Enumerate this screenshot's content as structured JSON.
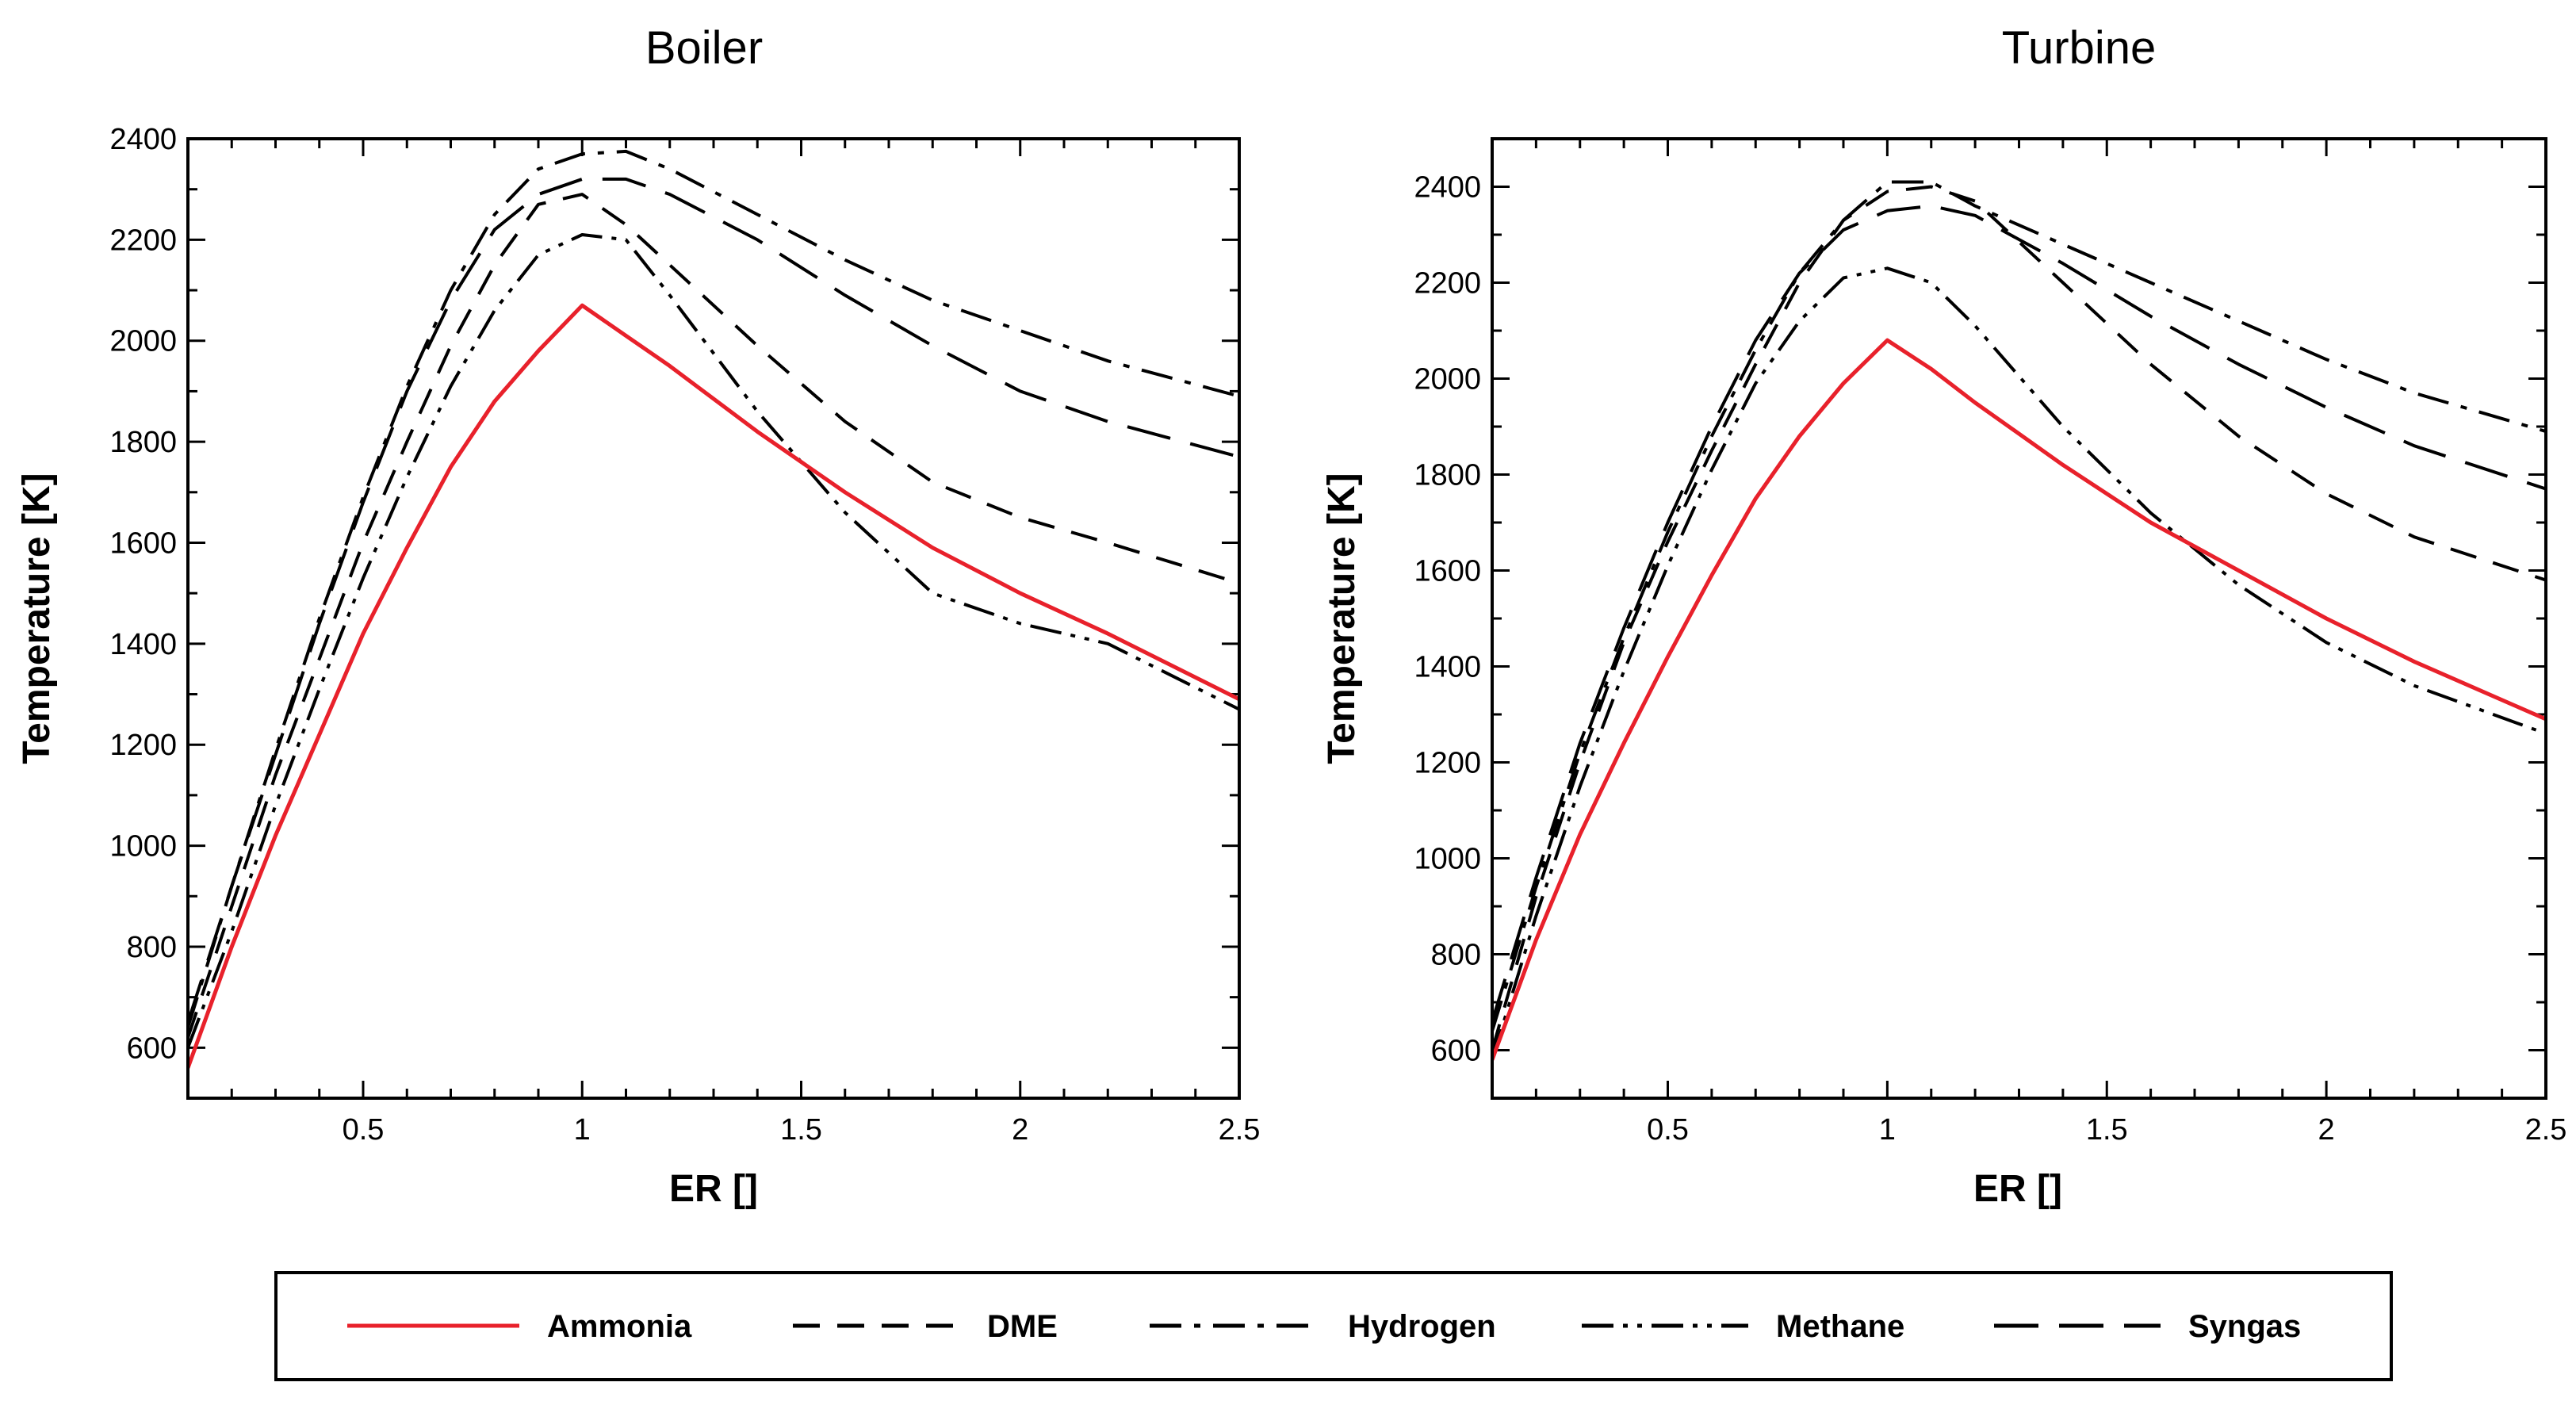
{
  "chart_data": [
    {
      "type": "line",
      "title": "Boiler",
      "xlabel": "ER []",
      "ylabel": "Temperature [K]",
      "xlim": [
        0.1,
        2.5
      ],
      "ylim": [
        500,
        2400
      ],
      "xticks": [
        0.5,
        1,
        1.5,
        2,
        2.5
      ],
      "xtick_labels": [
        "0.5",
        "1",
        "1.5",
        "2",
        "2.5"
      ],
      "yticks": [
        600,
        800,
        1000,
        1200,
        1400,
        1600,
        1800,
        2000,
        2200,
        2400
      ],
      "ytick_labels": [
        "600",
        "800",
        "1000",
        "1200",
        "1400",
        "1600",
        "1800",
        "2000",
        "2200",
        "2400"
      ],
      "grid": false,
      "series": [
        {
          "name": "Ammonia",
          "x": [
            0.1,
            0.2,
            0.3,
            0.4,
            0.5,
            0.6,
            0.7,
            0.8,
            0.9,
            1.0,
            1.1,
            1.2,
            1.4,
            1.6,
            1.8,
            2.0,
            2.2,
            2.5
          ],
          "values": [
            560,
            800,
            1020,
            1220,
            1420,
            1590,
            1750,
            1880,
            1980,
            2070,
            2010,
            1950,
            1820,
            1700,
            1590,
            1500,
            1420,
            1290
          ]
        },
        {
          "name": "DME",
          "x": [
            0.1,
            0.2,
            0.3,
            0.4,
            0.5,
            0.6,
            0.7,
            0.8,
            0.9,
            1.0,
            1.1,
            1.2,
            1.4,
            1.6,
            1.8,
            2.0,
            2.2,
            2.5
          ],
          "values": [
            620,
            880,
            1140,
            1370,
            1600,
            1800,
            1990,
            2150,
            2270,
            2290,
            2230,
            2150,
            1990,
            1840,
            1720,
            1650,
            1600,
            1520
          ]
        },
        {
          "name": "Hydrogen",
          "x": [
            0.1,
            0.2,
            0.3,
            0.4,
            0.5,
            0.6,
            0.7,
            0.8,
            0.9,
            1.0,
            1.1,
            1.2,
            1.4,
            1.6,
            1.8,
            2.0,
            2.2,
            2.5
          ],
          "values": [
            640,
            920,
            1190,
            1450,
            1690,
            1910,
            2100,
            2250,
            2340,
            2370,
            2375,
            2340,
            2250,
            2160,
            2080,
            2020,
            1960,
            1890
          ]
        },
        {
          "name": "Methane",
          "x": [
            0.1,
            0.2,
            0.3,
            0.4,
            0.5,
            0.6,
            0.7,
            0.8,
            0.9,
            1.0,
            1.1,
            1.2,
            1.4,
            1.6,
            1.8,
            2.0,
            2.2,
            2.5
          ],
          "values": [
            600,
            830,
            1080,
            1310,
            1530,
            1730,
            1910,
            2060,
            2170,
            2210,
            2200,
            2090,
            1860,
            1660,
            1500,
            1440,
            1400,
            1270
          ]
        },
        {
          "name": "Syngas",
          "x": [
            0.1,
            0.2,
            0.3,
            0.4,
            0.5,
            0.6,
            0.7,
            0.8,
            0.9,
            1.0,
            1.1,
            1.2,
            1.4,
            1.6,
            1.8,
            2.0,
            2.2,
            2.5
          ],
          "values": [
            650,
            920,
            1180,
            1440,
            1680,
            1900,
            2080,
            2220,
            2290,
            2320,
            2320,
            2290,
            2200,
            2090,
            1990,
            1900,
            1840,
            1770
          ]
        }
      ]
    },
    {
      "type": "line",
      "title": "Turbine",
      "xlabel": "ER []",
      "ylabel": "Temperature [K]",
      "xlim": [
        0.1,
        2.5
      ],
      "ylim": [
        500,
        2500
      ],
      "xticks": [
        0.5,
        1,
        1.5,
        2,
        2.5
      ],
      "xtick_labels": [
        "0.5",
        "1",
        "1.5",
        "2",
        "2.5"
      ],
      "yticks": [
        600,
        800,
        1000,
        1200,
        1400,
        1600,
        1800,
        2000,
        2200,
        2400
      ],
      "ytick_labels": [
        "600",
        "800",
        "1000",
        "1200",
        "1400",
        "1600",
        "1800",
        "2000",
        "2200",
        "2400"
      ],
      "grid": false,
      "series": [
        {
          "name": "Ammonia",
          "x": [
            0.1,
            0.2,
            0.3,
            0.4,
            0.5,
            0.6,
            0.7,
            0.8,
            0.9,
            1.0,
            1.1,
            1.2,
            1.4,
            1.6,
            1.8,
            2.0,
            2.2,
            2.5
          ],
          "values": [
            580,
            830,
            1050,
            1240,
            1420,
            1590,
            1750,
            1880,
            1990,
            2080,
            2020,
            1950,
            1820,
            1700,
            1600,
            1500,
            1410,
            1290
          ]
        },
        {
          "name": "DME",
          "x": [
            0.1,
            0.2,
            0.3,
            0.4,
            0.5,
            0.6,
            0.7,
            0.8,
            0.9,
            1.0,
            1.1,
            1.2,
            1.4,
            1.6,
            1.8,
            2.0,
            2.2,
            2.5
          ],
          "values": [
            600,
            920,
            1200,
            1450,
            1660,
            1850,
            2030,
            2200,
            2330,
            2390,
            2400,
            2370,
            2200,
            2030,
            1880,
            1760,
            1670,
            1580
          ]
        },
        {
          "name": "Hydrogen",
          "x": [
            0.1,
            0.2,
            0.3,
            0.4,
            0.5,
            0.6,
            0.7,
            0.8,
            0.9,
            1.0,
            1.1,
            1.2,
            1.4,
            1.6,
            1.8,
            2.0,
            2.2,
            2.5
          ],
          "values": [
            640,
            940,
            1220,
            1460,
            1680,
            1880,
            2060,
            2220,
            2330,
            2410,
            2410,
            2360,
            2280,
            2200,
            2120,
            2040,
            1970,
            1890
          ]
        },
        {
          "name": "Methane",
          "x": [
            0.1,
            0.2,
            0.3,
            0.4,
            0.5,
            0.6,
            0.7,
            0.8,
            0.9,
            1.0,
            1.1,
            1.2,
            1.4,
            1.6,
            1.8,
            2.0,
            2.2,
            2.5
          ],
          "values": [
            580,
            880,
            1150,
            1390,
            1610,
            1810,
            1990,
            2120,
            2210,
            2230,
            2200,
            2110,
            1900,
            1720,
            1570,
            1450,
            1360,
            1260
          ]
        },
        {
          "name": "Syngas",
          "x": [
            0.1,
            0.2,
            0.3,
            0.4,
            0.5,
            0.6,
            0.7,
            0.8,
            0.9,
            1.0,
            1.1,
            1.2,
            1.4,
            1.6,
            1.8,
            2.0,
            2.2,
            2.5
          ],
          "values": [
            660,
            960,
            1240,
            1480,
            1700,
            1900,
            2080,
            2220,
            2310,
            2350,
            2360,
            2340,
            2240,
            2130,
            2030,
            1940,
            1860,
            1770
          ]
        }
      ]
    }
  ],
  "legend": {
    "placement": "bottom-center",
    "entries": [
      {
        "name": "Ammonia",
        "label": "Ammonia",
        "color": "#e8212b",
        "dash": "solid"
      },
      {
        "name": "DME",
        "label": "DME",
        "color": "#000000",
        "dash": "dash"
      },
      {
        "name": "Hydrogen",
        "label": "Hydrogen",
        "color": "#000000",
        "dash": "dash-dot"
      },
      {
        "name": "Methane",
        "label": "Methane",
        "color": "#000000",
        "dash": "dash-dot-dot"
      },
      {
        "name": "Syngas",
        "label": "Syngas",
        "color": "#000000",
        "dash": "long-dash"
      }
    ]
  },
  "colors": {
    "axis": "#000000",
    "ammonia": "#e8212b",
    "line": "#000000"
  }
}
